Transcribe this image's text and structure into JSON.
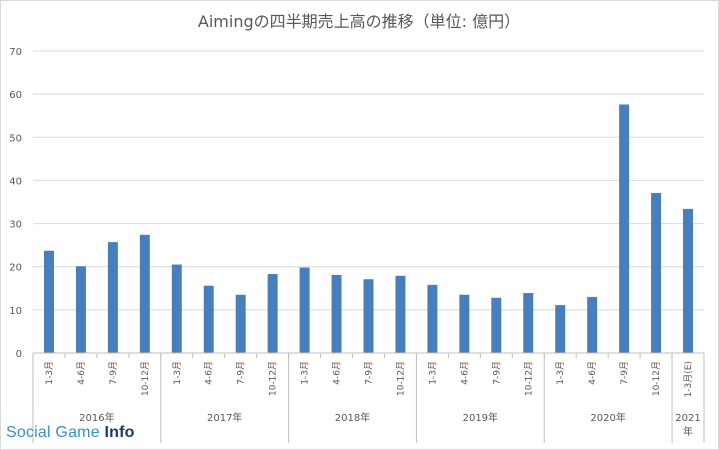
{
  "chart_data": {
    "type": "bar",
    "title": "Aimingの四半期売上高の推移（単位: 億円）",
    "xlabel": "",
    "ylabel": "",
    "ylim": [
      0,
      70
    ],
    "yticks": [
      "0",
      "10",
      "20",
      "30",
      "40",
      "50",
      "60",
      "70"
    ],
    "grid": true,
    "bar_color": "#4a7ebb",
    "groups": [
      {
        "label": "2016年",
        "categories": [
          "1-3月",
          "4-6月",
          "7-9月",
          "10-12月"
        ],
        "values": [
          23.7,
          20.1,
          25.7,
          27.4
        ]
      },
      {
        "label": "2017年",
        "categories": [
          "1-3月",
          "4-6月",
          "7-9月",
          "10-12月"
        ],
        "values": [
          20.5,
          15.6,
          13.5,
          18.3
        ]
      },
      {
        "label": "2018年",
        "categories": [
          "1-3月",
          "4-6月",
          "7-9月",
          "10-12月"
        ],
        "values": [
          19.8,
          18.1,
          17.1,
          17.9
        ]
      },
      {
        "label": "2019年",
        "categories": [
          "1-3月",
          "4-6月",
          "7-9月",
          "10-12月"
        ],
        "values": [
          15.8,
          13.5,
          12.8,
          13.9
        ]
      },
      {
        "label": "2020年",
        "categories": [
          "1-3月",
          "4-6月",
          "7-9月",
          "10-12月"
        ],
        "values": [
          11.1,
          13.0,
          57.6,
          37.1
        ]
      },
      {
        "label": "2021年",
        "categories": [
          "1-3月(E)"
        ],
        "values": [
          33.4
        ]
      }
    ]
  },
  "watermark": {
    "part1": "Social Game ",
    "part2": "Info"
  }
}
